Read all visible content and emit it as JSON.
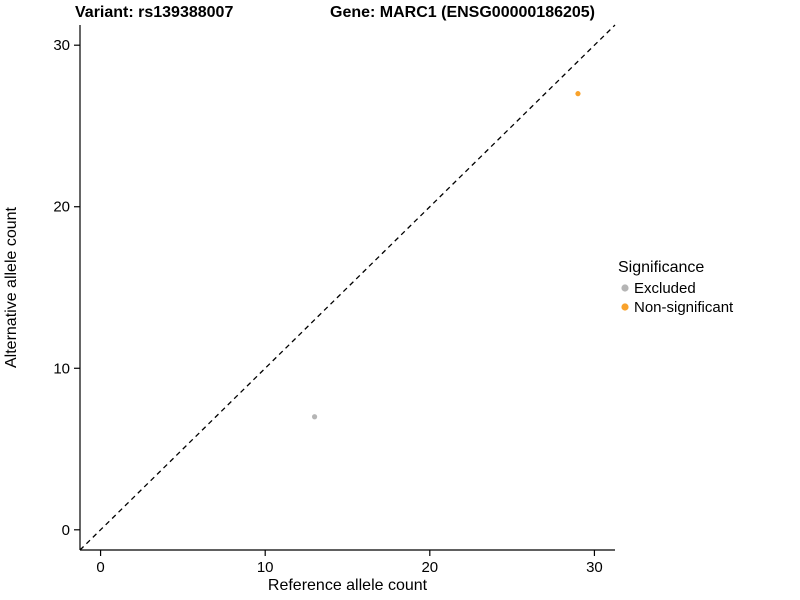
{
  "chart_data": {
    "type": "scatter",
    "title_left": "Variant: rs139388007",
    "title_right": "Gene: MARC1 (ENSG00000186205)",
    "xlabel": "Reference allele count",
    "ylabel": "Alternative allele count",
    "xlim": [
      -1.25,
      31.25
    ],
    "ylim": [
      -1.25,
      31.25
    ],
    "x_ticks": [
      0,
      10,
      20,
      30
    ],
    "y_ticks": [
      0,
      10,
      20,
      30
    ],
    "grid": false,
    "reference_line": {
      "slope": 1,
      "intercept": 0,
      "style": "dashed",
      "color": "#000000"
    },
    "series": [
      {
        "name": "Excluded",
        "color": "#B5B5B5",
        "points": [
          {
            "x": 13,
            "y": 7
          }
        ]
      },
      {
        "name": "Non-significant",
        "color": "#F9A22B",
        "points": [
          {
            "x": 29,
            "y": 27
          }
        ]
      }
    ],
    "legend": {
      "title": "Significance",
      "position": "right",
      "entries": [
        "Excluded",
        "Non-significant"
      ]
    },
    "colors": {
      "axis": "#000000",
      "text": "#000000",
      "background": "#FFFFFF"
    }
  }
}
